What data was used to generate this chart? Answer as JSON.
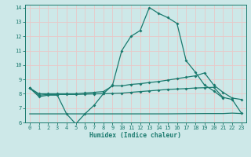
{
  "xlabel": "Humidex (Indice chaleur)",
  "xlim": [
    -0.5,
    23.5
  ],
  "ylim": [
    6,
    14.2
  ],
  "yticks": [
    6,
    7,
    8,
    9,
    10,
    11,
    12,
    13,
    14
  ],
  "xticks": [
    0,
    1,
    2,
    3,
    4,
    5,
    6,
    7,
    8,
    9,
    10,
    11,
    12,
    13,
    14,
    15,
    16,
    17,
    18,
    19,
    20,
    21,
    22,
    23
  ],
  "background_color": "#cde8e8",
  "grid_color": "#e8c8c8",
  "line_color": "#1a7a6e",
  "line1_x": [
    0,
    1,
    2,
    3,
    4,
    5,
    6,
    7,
    8,
    9,
    10,
    11,
    12,
    13,
    14,
    15,
    16,
    17,
    18,
    19,
    20,
    21
  ],
  "line1_y": [
    8.4,
    7.8,
    7.9,
    7.9,
    6.6,
    5.9,
    6.6,
    7.2,
    8.0,
    8.6,
    11.0,
    12.0,
    12.4,
    14.0,
    13.6,
    13.3,
    12.9,
    10.3,
    9.5,
    8.6,
    8.2,
    7.7
  ],
  "line2_x": [
    0,
    1,
    2,
    3,
    4,
    5,
    6,
    7,
    8,
    9,
    10,
    11,
    12,
    13,
    14,
    15,
    16,
    17,
    18,
    19,
    20,
    21,
    22,
    23
  ],
  "line2_y": [
    8.4,
    8.0,
    8.0,
    8.0,
    8.0,
    8.0,
    8.05,
    8.1,
    8.15,
    8.55,
    8.55,
    8.65,
    8.7,
    8.78,
    8.85,
    8.95,
    9.05,
    9.15,
    9.25,
    9.45,
    8.6,
    8.1,
    7.7,
    7.6
  ],
  "line3_x": [
    0,
    1,
    2,
    3,
    4,
    5,
    6,
    7,
    8,
    9,
    10,
    11,
    12,
    13,
    14,
    15,
    16,
    17,
    18,
    19,
    20,
    21,
    22,
    23
  ],
  "line3_y": [
    8.4,
    7.9,
    7.95,
    7.95,
    7.95,
    7.95,
    7.97,
    7.99,
    8.0,
    8.02,
    8.04,
    8.1,
    8.15,
    8.2,
    8.25,
    8.3,
    8.33,
    8.36,
    8.4,
    8.42,
    8.45,
    7.75,
    7.6,
    6.65
  ],
  "line4_x": [
    0,
    5,
    10,
    15,
    19,
    20,
    21,
    22,
    23
  ],
  "line4_y": [
    6.6,
    6.6,
    6.6,
    6.6,
    6.62,
    6.62,
    6.62,
    6.65,
    6.62
  ]
}
